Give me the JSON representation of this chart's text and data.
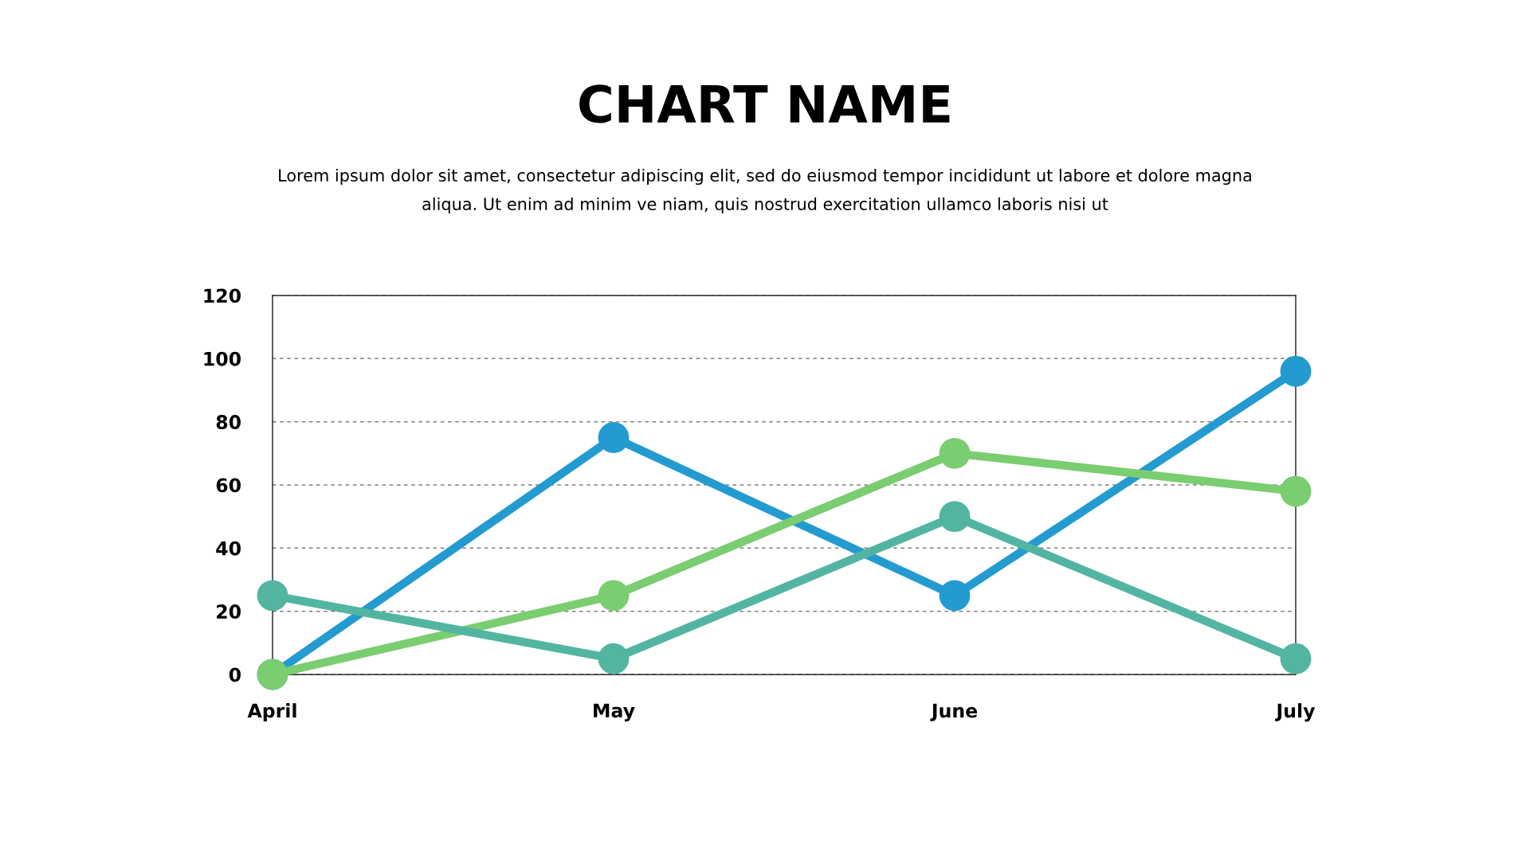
{
  "chart_data": {
    "type": "line",
    "title": "CHART NAME",
    "subtitle": "Lorem ipsum dolor sit amet, consectetur adipiscing elit, sed do eiusmod tempor incididunt ut labore et dolore magna\naliqua. Ut enim ad minim ve niam, quis nostrud exercitation ullamco laboris nisi ut",
    "categories": [
      "April",
      "May",
      "June",
      "July"
    ],
    "series": [
      {
        "color": "#239bd0",
        "values": [
          0,
          75,
          25,
          96
        ]
      },
      {
        "color": "#7acd70",
        "values": [
          0,
          25,
          70,
          58
        ]
      },
      {
        "color": "#52b5a1",
        "values": [
          25,
          5,
          50,
          5
        ]
      }
    ],
    "ylim": [
      0,
      120
    ],
    "yticks": [
      0,
      20,
      40,
      60,
      80,
      100,
      120
    ],
    "grid": "y",
    "marker": "circle",
    "line_style": "solid"
  }
}
